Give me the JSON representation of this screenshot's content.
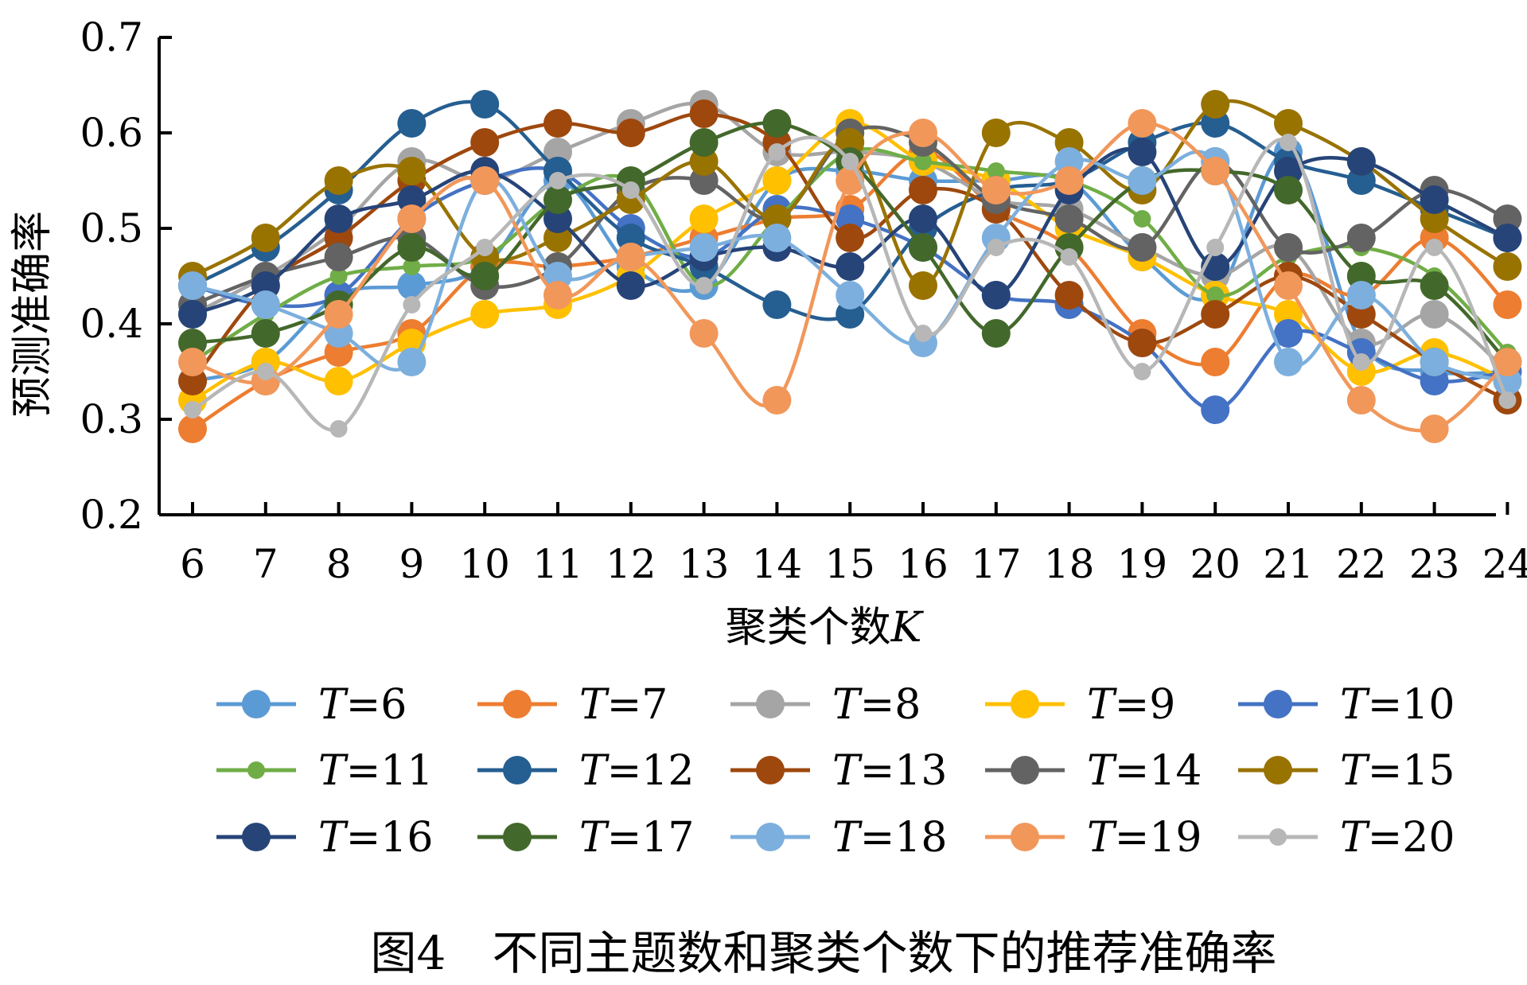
{
  "chart_data": {
    "type": "line",
    "smooth": true,
    "markers": "circle",
    "xlabel_prefix": "聚类个数",
    "xlabel_var": "K",
    "ylabel": "预测准确率",
    "ylim": [
      0.2,
      0.7
    ],
    "yticks": [
      "0.2",
      "0.3",
      "0.4",
      "0.5",
      "0.6",
      "0.7"
    ],
    "categories": [
      "6",
      "7",
      "8",
      "9",
      "10",
      "11",
      "12",
      "13",
      "14",
      "15",
      "16",
      "17",
      "18",
      "19",
      "20",
      "21",
      "22",
      "23",
      "24"
    ],
    "grid": false,
    "legend_placement": "bottom",
    "legend_var": "T",
    "caption": "图4　不同主题数和聚类个数下的推荐准确率",
    "series": [
      {
        "name": "=6",
        "color": "#5B9BD5",
        "values": [
          0.34,
          0.36,
          0.43,
          0.44,
          0.46,
          0.55,
          0.46,
          0.44,
          0.55,
          0.56,
          0.55,
          0.55,
          0.55,
          0.47,
          0.43,
          0.58,
          0.38,
          0.35,
          0.35
        ]
      },
      {
        "name": "=7",
        "color": "#ED7D31",
        "values": [
          0.29,
          0.34,
          0.37,
          0.39,
          0.46,
          0.46,
          0.47,
          0.49,
          0.51,
          0.52,
          0.58,
          0.52,
          0.48,
          0.39,
          0.36,
          0.45,
          0.43,
          0.49,
          0.42
        ]
      },
      {
        "name": "=8",
        "color": "#A5A5A5",
        "values": [
          0.41,
          0.45,
          0.5,
          0.57,
          0.55,
          0.58,
          0.61,
          0.63,
          0.58,
          0.58,
          0.57,
          0.53,
          0.52,
          0.48,
          0.45,
          0.48,
          0.38,
          0.41,
          0.35
        ]
      },
      {
        "name": "=9",
        "color": "#FFC000",
        "values": [
          0.32,
          0.36,
          0.34,
          0.38,
          0.41,
          0.42,
          0.45,
          0.51,
          0.55,
          0.61,
          0.57,
          0.55,
          0.5,
          0.47,
          0.43,
          0.41,
          0.35,
          0.37,
          0.34
        ]
      },
      {
        "name": "=10",
        "color": "#4472C4",
        "values": [
          0.44,
          0.42,
          0.43,
          0.51,
          0.55,
          0.56,
          0.5,
          0.47,
          0.52,
          0.51,
          0.48,
          0.43,
          0.42,
          0.38,
          0.31,
          0.39,
          0.37,
          0.34,
          0.35
        ]
      },
      {
        "name": "=11",
        "color": "#70AD47",
        "values": [
          0.36,
          0.41,
          0.45,
          0.46,
          0.47,
          0.53,
          0.55,
          0.44,
          0.51,
          0.58,
          0.57,
          0.56,
          0.55,
          0.51,
          0.43,
          0.47,
          0.48,
          0.45,
          0.37
        ]
      },
      {
        "name": "=12",
        "color": "#255E91",
        "values": [
          0.44,
          0.48,
          0.54,
          0.61,
          0.63,
          0.56,
          0.49,
          0.46,
          0.42,
          0.41,
          0.5,
          0.54,
          0.55,
          0.59,
          0.61,
          0.57,
          0.55,
          0.52,
          0.49
        ]
      },
      {
        "name": "=13",
        "color": "#9E480E",
        "values": [
          0.34,
          0.44,
          0.49,
          0.55,
          0.59,
          0.61,
          0.6,
          0.62,
          0.59,
          0.49,
          0.54,
          0.52,
          0.43,
          0.38,
          0.41,
          0.45,
          0.41,
          0.36,
          0.32
        ]
      },
      {
        "name": "=14",
        "color": "#636363",
        "values": [
          0.42,
          0.45,
          0.47,
          0.49,
          0.44,
          0.46,
          0.54,
          0.55,
          0.51,
          0.6,
          0.59,
          0.53,
          0.51,
          0.48,
          0.57,
          0.48,
          0.49,
          0.54,
          0.51
        ]
      },
      {
        "name": "=15",
        "color": "#997300",
        "values": [
          0.45,
          0.49,
          0.55,
          0.56,
          0.47,
          0.49,
          0.53,
          0.57,
          0.51,
          0.59,
          0.44,
          0.6,
          0.59,
          0.54,
          0.63,
          0.61,
          0.57,
          0.51,
          0.46
        ]
      },
      {
        "name": "=16",
        "color": "#264478",
        "values": [
          0.41,
          0.44,
          0.51,
          0.53,
          0.56,
          0.51,
          0.44,
          0.47,
          0.48,
          0.46,
          0.51,
          0.43,
          0.54,
          0.58,
          0.46,
          0.56,
          0.57,
          0.53,
          0.49
        ]
      },
      {
        "name": "=17",
        "color": "#43682B",
        "values": [
          0.38,
          0.39,
          0.42,
          0.48,
          0.45,
          0.53,
          0.55,
          0.59,
          0.61,
          0.57,
          0.48,
          0.39,
          0.48,
          0.55,
          0.56,
          0.54,
          0.45,
          0.44,
          0.36
        ]
      },
      {
        "name": "=18",
        "color": "#7CAFDD",
        "values": [
          0.44,
          0.42,
          0.39,
          0.36,
          0.55,
          0.45,
          0.47,
          0.48,
          0.49,
          0.43,
          0.38,
          0.49,
          0.57,
          0.55,
          0.57,
          0.36,
          0.43,
          0.36,
          0.34
        ]
      },
      {
        "name": "=19",
        "color": "#F1975A",
        "values": [
          0.36,
          0.34,
          0.41,
          0.51,
          0.55,
          0.43,
          0.47,
          0.39,
          0.32,
          0.55,
          0.6,
          0.54,
          0.55,
          0.61,
          0.56,
          0.44,
          0.32,
          0.29,
          0.36
        ]
      },
      {
        "name": "=20",
        "color": "#B7B7B7",
        "values": [
          0.31,
          0.35,
          0.29,
          0.42,
          0.48,
          0.55,
          0.54,
          0.44,
          0.58,
          0.57,
          0.39,
          0.48,
          0.47,
          0.35,
          0.48,
          0.59,
          0.36,
          0.48,
          0.32
        ]
      }
    ]
  }
}
